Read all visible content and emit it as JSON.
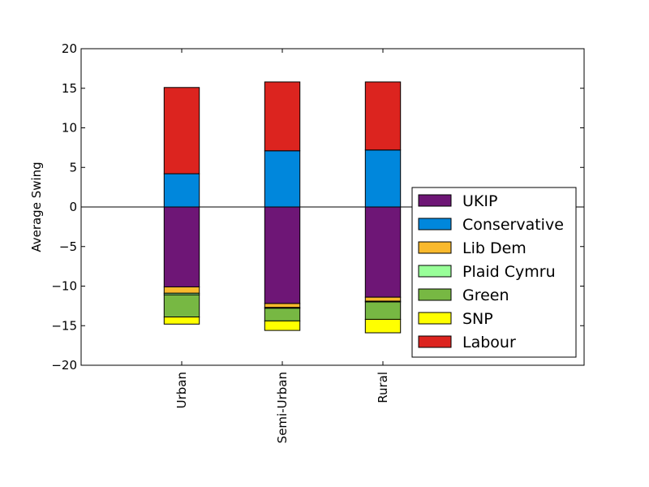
{
  "chart_data": {
    "type": "bar",
    "stacked": true,
    "title": "",
    "xlabel": "",
    "ylabel": "Average Swing",
    "ylim": [
      -20,
      20
    ],
    "yticks": [
      20,
      15,
      10,
      5,
      0,
      -5,
      -10,
      -15,
      -20
    ],
    "ytick_labels": [
      "20",
      "15",
      "10",
      "5",
      "0",
      "−5",
      "−10",
      "−15",
      "−20"
    ],
    "categories": [
      "Urban",
      "Semi-Urban",
      "Rural"
    ],
    "category_positions": [
      1,
      2,
      3
    ],
    "xlim": [
      0.0,
      5.0
    ],
    "bar_width": 0.35,
    "zero_line": true,
    "legend_position": "lower-right",
    "legend": [
      "UKIP",
      "Conservative",
      "Lib Dem",
      "Plaid Cymru",
      "Green",
      "SNP",
      "Labour"
    ],
    "series": [
      {
        "name": "UKIP",
        "color": "#6e1676",
        "values": [
          -10.1,
          -12.2,
          -11.4
        ]
      },
      {
        "name": "Lib Dem",
        "color": "#f9b92d",
        "values": [
          -0.8,
          -0.5,
          -0.5
        ]
      },
      {
        "name": "Plaid Cymru",
        "color": "#99ff99",
        "values": [
          -0.2,
          -0.1,
          -0.1
        ]
      },
      {
        "name": "Green",
        "color": "#77b843",
        "values": [
          -2.8,
          -1.6,
          -2.2
        ]
      },
      {
        "name": "SNP",
        "color": "#ffff00",
        "values": [
          -0.9,
          -1.2,
          -1.7
        ]
      },
      {
        "name": "Conservative",
        "color": "#0087dc",
        "values": [
          4.2,
          7.1,
          7.2
        ]
      },
      {
        "name": "Labour",
        "color": "#dc241f",
        "values": [
          10.9,
          8.7,
          8.6
        ]
      }
    ]
  }
}
